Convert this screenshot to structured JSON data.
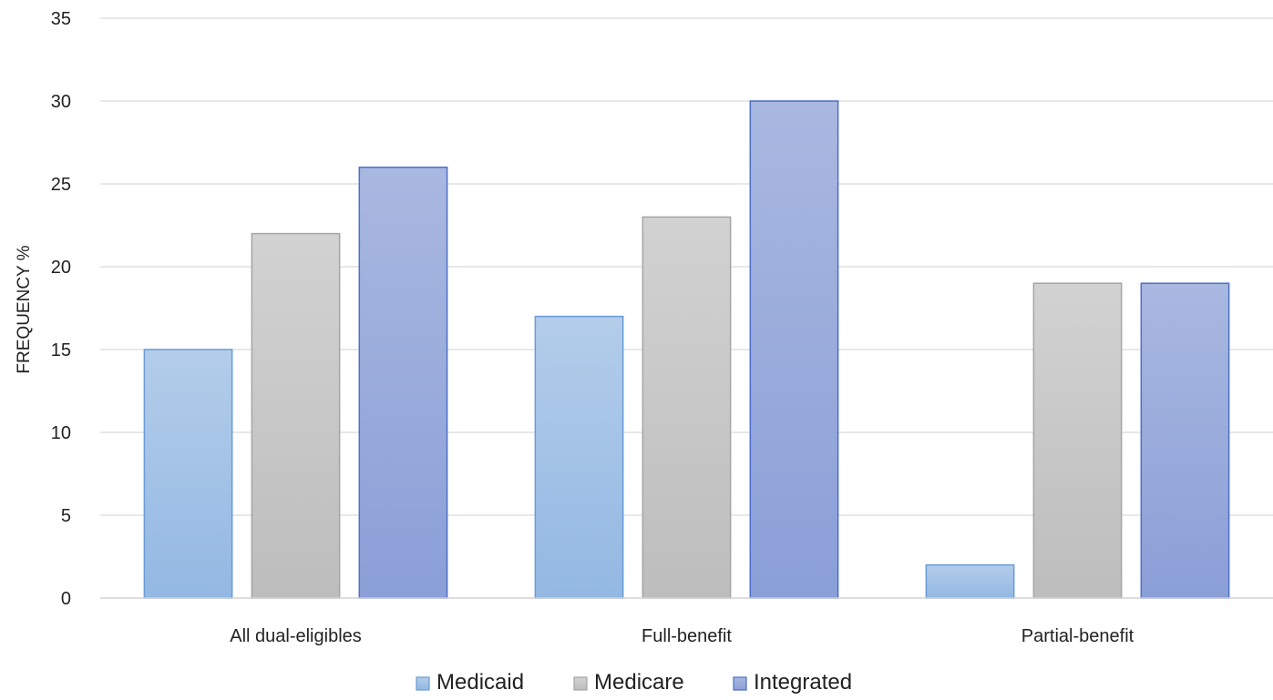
{
  "chart_data": {
    "type": "bar",
    "title": "",
    "xlabel": "",
    "ylabel": "FREQUENCY %",
    "ylim": [
      0,
      35
    ],
    "yticks": [
      0,
      5,
      10,
      15,
      20,
      25,
      30,
      35
    ],
    "grid": true,
    "legend_position": "bottom",
    "categories": [
      "All dual-eligibles",
      "Full-benefit",
      "Partial-benefit"
    ],
    "series": [
      {
        "name": "Medicaid",
        "values": [
          15,
          17,
          2
        ],
        "color_top": "#b3cdea",
        "color_bottom": "#93b8e3",
        "stroke": "#6a9bd6"
      },
      {
        "name": "Medicare",
        "values": [
          22,
          23,
          19
        ],
        "color_top": "#d2d2d2",
        "color_bottom": "#bdbdbd",
        "stroke": "#a5a5a5"
      },
      {
        "name": "Integrated",
        "values": [
          26,
          30,
          19
        ],
        "color_top": "#a9b8e0",
        "color_bottom": "#8b9fd8",
        "stroke": "#4c6fc9"
      }
    ]
  }
}
